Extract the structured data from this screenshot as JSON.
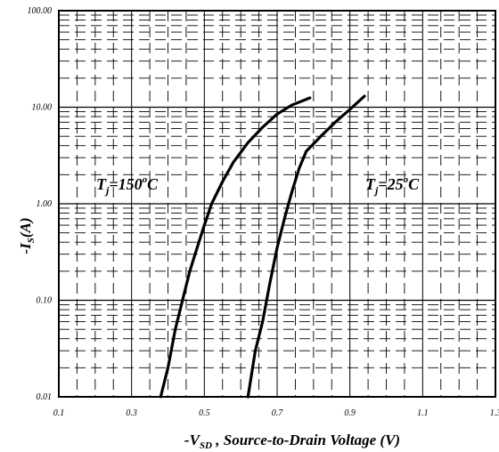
{
  "chart_data": {
    "type": "line",
    "x_scale": "linear",
    "y_scale": "log",
    "xlim": [
      0.1,
      1.3
    ],
    "ylim": [
      0.01,
      100
    ],
    "x_ticks": [
      "0.1",
      "0.3",
      "0.5",
      "0.7",
      "0.9",
      "1.1",
      "1.3"
    ],
    "y_ticks": [
      "100.00",
      "10.00",
      "1.00",
      "0.10",
      "0.01"
    ],
    "xlabel": {
      "prefix": "-V",
      "subscript": "SD",
      "suffix": " , Source-to-Drain Voltage (V)"
    },
    "ylabel": {
      "prefix": "-I",
      "subscript": "S",
      "suffix": "(A)"
    },
    "grid": true,
    "series": [
      {
        "label_parts": [
          "T",
          "j",
          "=150",
          "o",
          "C"
        ],
        "color": "#000000",
        "points": [
          [
            0.38,
            0.01
          ],
          [
            0.4,
            0.02
          ],
          [
            0.42,
            0.05
          ],
          [
            0.44,
            0.1
          ],
          [
            0.46,
            0.2
          ],
          [
            0.48,
            0.35
          ],
          [
            0.5,
            0.6
          ],
          [
            0.52,
            1.0
          ],
          [
            0.55,
            1.7
          ],
          [
            0.58,
            2.7
          ],
          [
            0.62,
            4.3
          ],
          [
            0.66,
            6.2
          ],
          [
            0.7,
            8.5
          ],
          [
            0.74,
            10.5
          ],
          [
            0.79,
            12.5
          ]
        ]
      },
      {
        "label_parts": [
          "T",
          "j",
          "=25",
          "o",
          "C"
        ],
        "color": "#000000",
        "points": [
          [
            0.62,
            0.01
          ],
          [
            0.64,
            0.03
          ],
          [
            0.66,
            0.06
          ],
          [
            0.68,
            0.15
          ],
          [
            0.7,
            0.35
          ],
          [
            0.72,
            0.7
          ],
          [
            0.74,
            1.3
          ],
          [
            0.76,
            2.3
          ],
          [
            0.78,
            3.5
          ],
          [
            0.82,
            5.0
          ],
          [
            0.86,
            7.0
          ],
          [
            0.9,
            9.5
          ],
          [
            0.94,
            13.0
          ]
        ]
      }
    ]
  }
}
